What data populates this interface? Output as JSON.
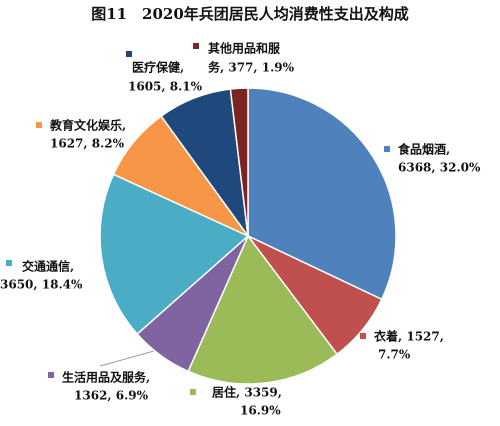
{
  "chart_data": {
    "type": "pie",
    "title": "图11　2020年兵团居民人均消费性支出及构成",
    "values": [
      6368,
      1527,
      3359,
      1362,
      3650,
      1627,
      1605,
      377
    ],
    "value_labels": [
      [
        "食品烟酒,",
        "6368, 32.0%"
      ],
      [
        "衣着, 1527,",
        "7.7%"
      ],
      [
        "居住, 3359,",
        "16.9%"
      ],
      [
        "生活用品及服务,",
        "1362, 6.9%"
      ],
      [
        "交通通信,",
        "3650, 18.4%"
      ],
      [
        "教育文化娱乐,",
        "1627, 8.2%"
      ],
      [
        "医疗保健,",
        "1605, 8.1%"
      ],
      [
        "其他用品和服",
        "务, 377, 1.9%"
      ]
    ],
    "colors": [
      "#4f81bd",
      "#c0504d",
      "#9bbb59",
      "#8064a2",
      "#4bacc6",
      "#f79646",
      "#1f497d",
      "#7a2522"
    ]
  }
}
